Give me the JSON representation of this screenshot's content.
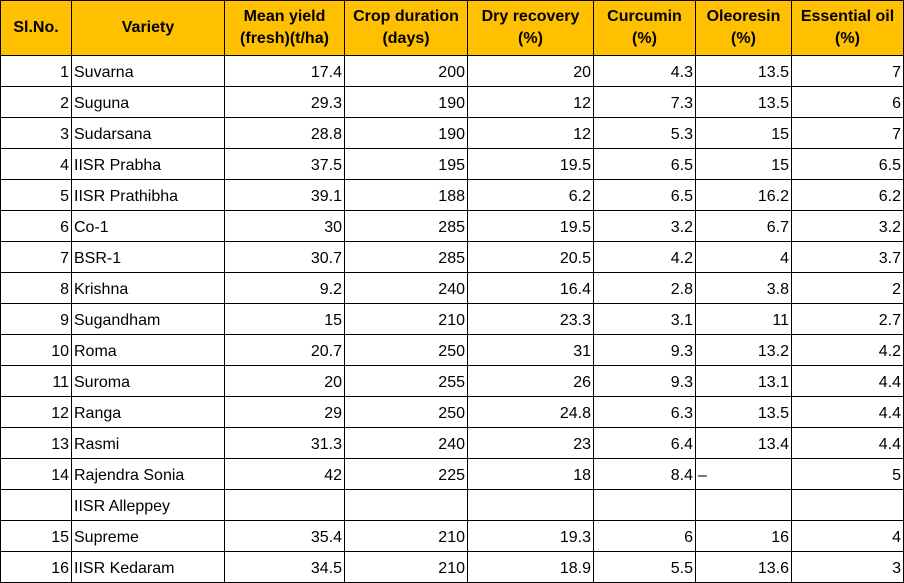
{
  "headers": {
    "sl_no": "Sl.No.",
    "variety": "Variety",
    "mean_yield_line1": "Mean yield",
    "mean_yield_line2": "(fresh)(t/ha)",
    "crop_duration_line1": "Crop duration",
    "crop_duration_line2": "(days)",
    "dry_recovery_line1": "Dry recovery",
    "dry_recovery_line2": "(%)",
    "curcumin_line1": "Curcumin",
    "curcumin_line2": "(%)",
    "oleoresin_line1": "Oleoresin",
    "oleoresin_line2": "(%)",
    "essential_oil_line1": "Essential oil",
    "essential_oil_line2": "(%)"
  },
  "rows": [
    {
      "sl": "1",
      "variety": "Suvarna",
      "yield": "17.4",
      "duration": "200",
      "dry": "20",
      "curcumin": "4.3",
      "oleoresin": "13.5",
      "oil": "7"
    },
    {
      "sl": "2",
      "variety": "Suguna",
      "yield": "29.3",
      "duration": "190",
      "dry": "12",
      "curcumin": "7.3",
      "oleoresin": "13.5",
      "oil": "6"
    },
    {
      "sl": "3",
      "variety": "Sudarsana",
      "yield": "28.8",
      "duration": "190",
      "dry": "12",
      "curcumin": "5.3",
      "oleoresin": "15",
      "oil": "7"
    },
    {
      "sl": "4",
      "variety": "IISR Prabha",
      "yield": "37.5",
      "duration": "195",
      "dry": "19.5",
      "curcumin": "6.5",
      "oleoresin": "15",
      "oil": "6.5"
    },
    {
      "sl": "5",
      "variety": "IISR Prathibha",
      "yield": "39.1",
      "duration": "188",
      "dry": "6.2",
      "curcumin": "6.5",
      "oleoresin": "16.2",
      "oil": "6.2"
    },
    {
      "sl": "6",
      "variety": "Co-1",
      "yield": "30",
      "duration": "285",
      "dry": "19.5",
      "curcumin": "3.2",
      "oleoresin": "6.7",
      "oil": "3.2"
    },
    {
      "sl": "7",
      "variety": "BSR-1",
      "yield": "30.7",
      "duration": "285",
      "dry": "20.5",
      "curcumin": "4.2",
      "oleoresin": "4",
      "oil": "3.7"
    },
    {
      "sl": "8",
      "variety": "Krishna",
      "yield": "9.2",
      "duration": "240",
      "dry": "16.4",
      "curcumin": "2.8",
      "oleoresin": "3.8",
      "oil": "2"
    },
    {
      "sl": "9",
      "variety": "Sugandham",
      "yield": "15",
      "duration": "210",
      "dry": "23.3",
      "curcumin": "3.1",
      "oleoresin": "11",
      "oil": "2.7"
    },
    {
      "sl": "10",
      "variety": "Roma",
      "yield": "20.7",
      "duration": "250",
      "dry": "31",
      "curcumin": "9.3",
      "oleoresin": "13.2",
      "oil": "4.2"
    },
    {
      "sl": "11",
      "variety": "Suroma",
      "yield": "20",
      "duration": "255",
      "dry": "26",
      "curcumin": "9.3",
      "oleoresin": "13.1",
      "oil": "4.4"
    },
    {
      "sl": "12",
      "variety": "Ranga",
      "yield": "29",
      "duration": "250",
      "dry": "24.8",
      "curcumin": "6.3",
      "oleoresin": "13.5",
      "oil": "4.4"
    },
    {
      "sl": "13",
      "variety": "Rasmi",
      "yield": "31.3",
      "duration": "240",
      "dry": "23",
      "curcumin": "6.4",
      "oleoresin": "13.4",
      "oil": "4.4"
    },
    {
      "sl": "14",
      "variety": "Rajendra Sonia",
      "yield": "42",
      "duration": "225",
      "dry": "18",
      "curcumin": "8.4",
      "oleoresin": "–",
      "oil": "5"
    },
    {
      "sl": "",
      "variety": "IISR Alleppey",
      "yield": "",
      "duration": "",
      "dry": "",
      "curcumin": "",
      "oleoresin": "",
      "oil": ""
    },
    {
      "sl": "15",
      "variety": "Supreme",
      "yield": "35.4",
      "duration": "210",
      "dry": "19.3",
      "curcumin": "6",
      "oleoresin": "16",
      "oil": "4"
    },
    {
      "sl": "16",
      "variety": "IISR Kedaram",
      "yield": "34.5",
      "duration": "210",
      "dry": "18.9",
      "curcumin": "5.5",
      "oleoresin": "13.6",
      "oil": "3"
    }
  ]
}
